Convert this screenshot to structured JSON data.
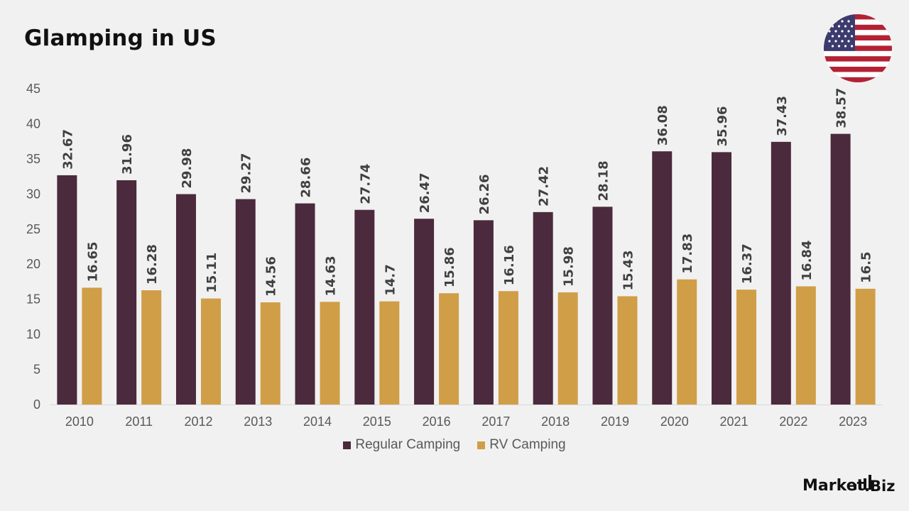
{
  "page": {
    "title": "Glamping in US",
    "brand": {
      "name_part1": "Market",
      "name_part2": ".Biz"
    },
    "flag_icon": "us-flag-icon"
  },
  "colors": {
    "regular": "#4a2a3c",
    "rv": "#cf9e47",
    "axis_text": "#595959",
    "label_text": "#404040"
  },
  "chart_data": {
    "type": "bar",
    "title": "Glamping in US",
    "xlabel": "",
    "ylabel": "",
    "ylim": [
      0,
      45
    ],
    "yticks": [
      0,
      5,
      10,
      15,
      20,
      25,
      30,
      35,
      40,
      45
    ],
    "grid": false,
    "legend_position": "bottom",
    "categories": [
      "2010",
      "2011",
      "2012",
      "2013",
      "2014",
      "2015",
      "2016",
      "2017",
      "2018",
      "2019",
      "2020",
      "2021",
      "2022",
      "2023"
    ],
    "series": [
      {
        "name": "Regular Camping",
        "color": "#4a2a3c",
        "values": [
          32.67,
          31.96,
          29.98,
          29.27,
          28.66,
          27.74,
          26.47,
          26.26,
          27.42,
          28.18,
          36.08,
          35.96,
          37.43,
          38.57
        ],
        "labels": [
          "32.67",
          "31.96",
          "29.98",
          "29.27",
          "28.66",
          "27.74",
          "26.47",
          "26.26",
          "27.42",
          "28.18",
          "36.08",
          "35.96",
          "37.43",
          "38.57"
        ]
      },
      {
        "name": "RV Camping",
        "color": "#cf9e47",
        "values": [
          16.65,
          16.28,
          15.11,
          14.56,
          14.63,
          14.7,
          15.86,
          16.16,
          15.98,
          15.43,
          17.83,
          16.37,
          16.84,
          16.5
        ],
        "labels": [
          "16.65",
          "16.28",
          "15.11",
          "14.56",
          "14.63",
          "14.7",
          "15.86",
          "16.16",
          "15.98",
          "15.43",
          "17.83",
          "16.37",
          "16.84",
          "16.5"
        ]
      }
    ]
  }
}
